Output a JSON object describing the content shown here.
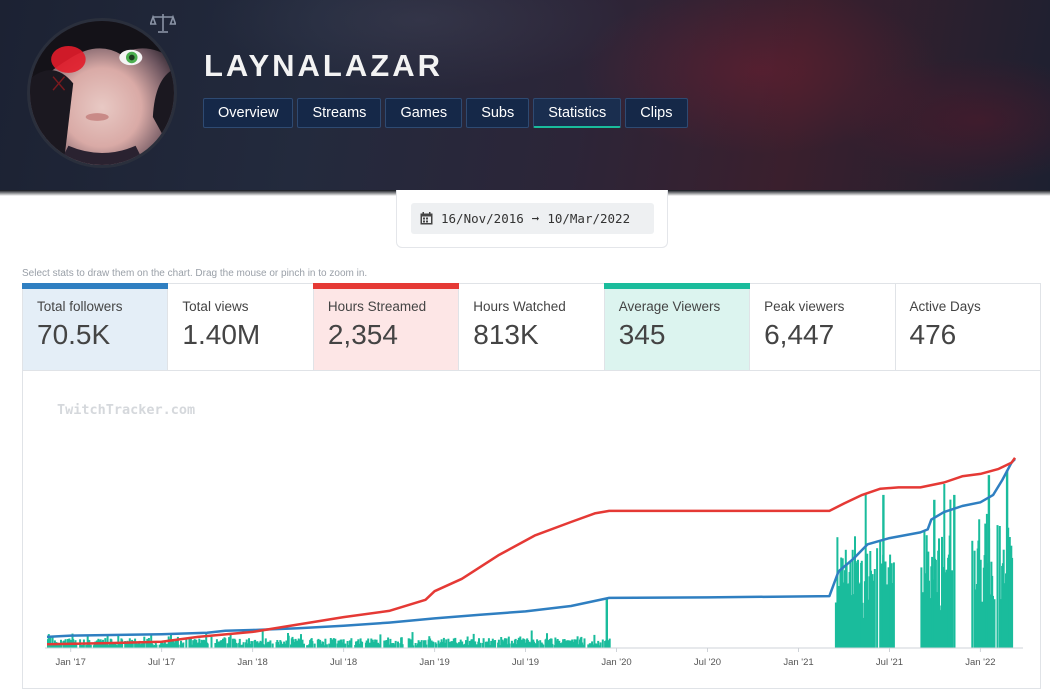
{
  "channel": {
    "name": "LAYNALAZAR",
    "avatar_icon": "avatar-image",
    "badge_icon": "balance-scale-icon"
  },
  "nav": {
    "tabs": [
      {
        "label": "Overview",
        "active": false
      },
      {
        "label": "Streams",
        "active": false
      },
      {
        "label": "Games",
        "active": false
      },
      {
        "label": "Subs",
        "active": false
      },
      {
        "label": "Statistics",
        "active": true
      },
      {
        "label": "Clips",
        "active": false
      }
    ]
  },
  "date_range": {
    "icon": "calendar-icon",
    "start": "16/Nov/2016",
    "arrow": "➞",
    "end": "10/Mar/2022"
  },
  "hint": "Select stats to draw them on the chart. Drag the mouse or pinch in to zoom in.",
  "stats": [
    {
      "label": "Total followers",
      "value": "70.5K",
      "selected": "blue"
    },
    {
      "label": "Total views",
      "value": "1.40M",
      "selected": ""
    },
    {
      "label": "Hours Streamed",
      "value": "2,354",
      "selected": "red"
    },
    {
      "label": "Hours Watched",
      "value": "813K",
      "selected": ""
    },
    {
      "label": "Average Viewers",
      "value": "345",
      "selected": "green"
    },
    {
      "label": "Peak viewers",
      "value": "6,447",
      "selected": ""
    },
    {
      "label": "Active Days",
      "value": "476",
      "selected": ""
    }
  ],
  "colors": {
    "followers": "#2f7fc1",
    "hours_streamed": "#e53935",
    "average_viewers": "#1abc9c"
  },
  "chart_data": {
    "type": "line",
    "watermark": "TwitchTracker.com",
    "x_ticks": [
      "Jan '17",
      "Jul '17",
      "Jan '18",
      "Jul '18",
      "Jan '19",
      "Jul '19",
      "Jan '20",
      "Jul '20",
      "Jan '21",
      "Jul '21",
      "Jan '22"
    ],
    "x_range": [
      2016.87,
      2022.19
    ],
    "ylim_normalized": [
      0,
      1
    ],
    "series": [
      {
        "name": "Total followers",
        "kind": "line",
        "color": "#2f7fc1",
        "points": [
          [
            2016.87,
            0.045
          ],
          [
            2017.0,
            0.05
          ],
          [
            2017.5,
            0.056
          ],
          [
            2017.75,
            0.062
          ],
          [
            2017.85,
            0.07
          ],
          [
            2018.0,
            0.073
          ],
          [
            2018.25,
            0.08
          ],
          [
            2018.5,
            0.09
          ],
          [
            2018.75,
            0.103
          ],
          [
            2019.0,
            0.12
          ],
          [
            2019.25,
            0.135
          ],
          [
            2019.5,
            0.148
          ],
          [
            2019.75,
            0.17
          ],
          [
            2019.96,
            0.203
          ],
          [
            2020.5,
            0.205
          ],
          [
            2021.17,
            0.21
          ],
          [
            2021.22,
            0.31
          ],
          [
            2021.3,
            0.36
          ],
          [
            2021.38,
            0.42
          ],
          [
            2021.5,
            0.445
          ],
          [
            2021.67,
            0.468
          ],
          [
            2021.71,
            0.48
          ],
          [
            2021.73,
            0.52
          ],
          [
            2021.8,
            0.55
          ],
          [
            2021.9,
            0.575
          ],
          [
            2022.0,
            0.59
          ],
          [
            2022.07,
            0.62
          ],
          [
            2022.12,
            0.68
          ],
          [
            2022.17,
            0.75
          ],
          [
            2022.19,
            0.765
          ]
        ]
      },
      {
        "name": "Hours Streamed",
        "kind": "line",
        "color": "#e53935",
        "points": [
          [
            2016.87,
            0.015
          ],
          [
            2017.2,
            0.02
          ],
          [
            2017.5,
            0.025
          ],
          [
            2017.7,
            0.045
          ],
          [
            2018.0,
            0.065
          ],
          [
            2018.25,
            0.095
          ],
          [
            2018.5,
            0.125
          ],
          [
            2018.75,
            0.15
          ],
          [
            2018.95,
            0.195
          ],
          [
            2019.0,
            0.23
          ],
          [
            2019.15,
            0.28
          ],
          [
            2019.35,
            0.375
          ],
          [
            2019.55,
            0.455
          ],
          [
            2019.75,
            0.51
          ],
          [
            2019.88,
            0.545
          ],
          [
            2019.96,
            0.555
          ],
          [
            2020.5,
            0.555
          ],
          [
            2021.17,
            0.555
          ],
          [
            2021.25,
            0.585
          ],
          [
            2021.35,
            0.62
          ],
          [
            2021.45,
            0.645
          ],
          [
            2021.55,
            0.65
          ],
          [
            2021.67,
            0.65
          ],
          [
            2021.8,
            0.67
          ],
          [
            2021.9,
            0.695
          ],
          [
            2022.0,
            0.705
          ],
          [
            2022.1,
            0.725
          ],
          [
            2022.17,
            0.75
          ],
          [
            2022.19,
            0.77
          ]
        ]
      },
      {
        "name": "Average Viewers",
        "kind": "bars",
        "color": "#1abc9c",
        "segments": [
          {
            "from": 2016.87,
            "to": 2019.96,
            "level": 0.03,
            "jitter": 0.035
          },
          {
            "from": 2021.2,
            "to": 2021.52,
            "level": 0.3,
            "jitter": 0.25
          },
          {
            "from": 2021.67,
            "to": 2021.84,
            "level": 0.35,
            "jitter": 0.3
          },
          {
            "from": 2021.95,
            "to": 2022.17,
            "level": 0.4,
            "jitter": 0.3
          }
        ],
        "spikes": [
          [
            2019.94,
            0.2
          ],
          [
            2021.46,
            0.62
          ],
          [
            2021.74,
            0.6
          ],
          [
            2021.85,
            0.62
          ],
          [
            2022.04,
            0.7
          ],
          [
            2022.14,
            0.72
          ]
        ]
      }
    ]
  }
}
